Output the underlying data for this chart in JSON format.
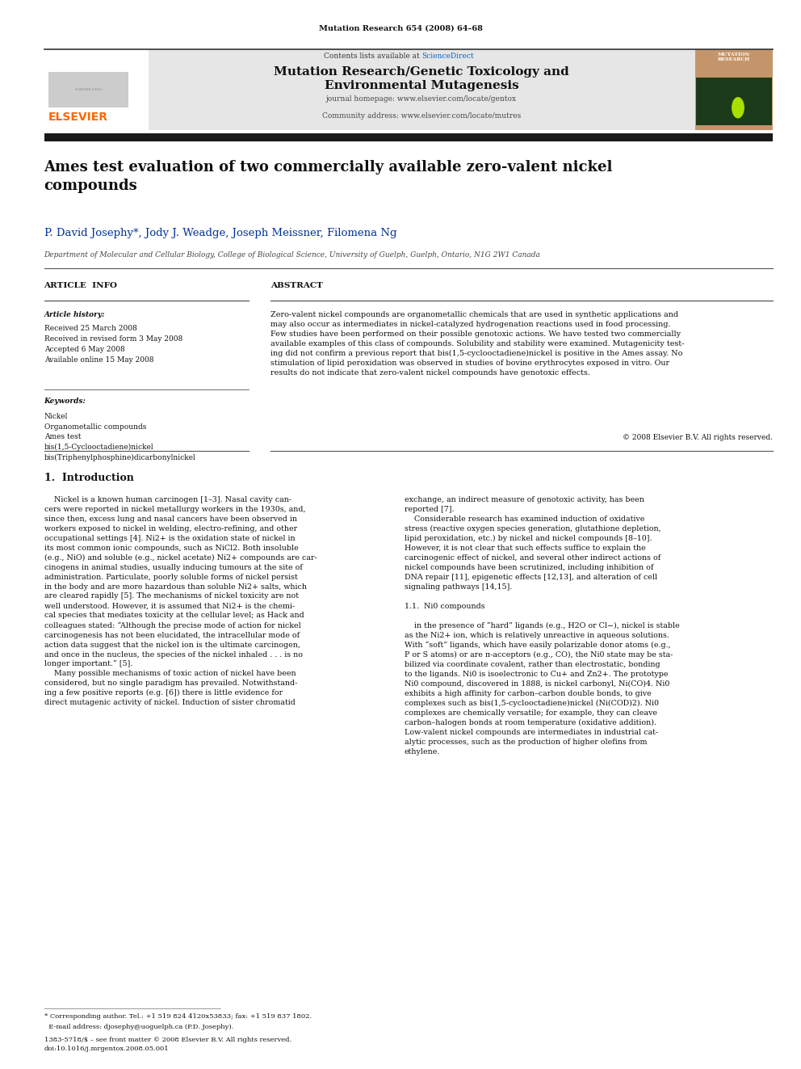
{
  "page_width": 9.92,
  "page_height": 13.23,
  "bg_color": "#ffffff",
  "journal_ref": "Mutation Research 654 (2008) 64–68",
  "header_content_line1": "Contents lists available at ScienceDirect",
  "header_journal_title": "Mutation Research/Genetic Toxicology and\nEnvironmental Mutagenesis",
  "header_journal_url1": "journal homepage: www.elsevier.com/locate/gentox",
  "header_journal_url2": "Community address: www.elsevier.com/locate/mutres",
  "sciencedirect_color": "#0066cc",
  "article_title": "Ames test evaluation of two commercially available zero-valent nickel\ncompounds",
  "authors": "P. David Josephy*, Jody J. Weadge, Joseph Meissner, Filomena Ng",
  "affiliation": "Department of Molecular and Cellular Biology, College of Biological Science, University of Guelph, Guelph, Ontario, N1G 2W1 Canada",
  "section_article_info": "ARTICLE  INFO",
  "section_abstract": "ABSTRACT",
  "article_history_label": "Article history:",
  "article_history": "Received 25 March 2008\nReceived in revised form 3 May 2008\nAccepted 6 May 2008\nAvailable online 15 May 2008",
  "keywords_label": "Keywords:",
  "keywords": "Nickel\nOrganometallic compounds\nAmes test\nbis(1,5-Cyclooctadiene)nickel\nbis(Triphenylphosphine)dicarbonylnickel",
  "abstract_text": "Zero-valent nickel compounds are organometallic chemicals that are used in synthetic applications and\nmay also occur as intermediates in nickel-catalyzed hydrogenation reactions used in food processing.\nFew studies have been performed on their possible genotoxic actions. We have tested two commercially\navailable examples of this class of compounds. Solubility and stability were examined. Mutagenicity test-\ning did not confirm a previous report that bis(1,5-cyclooctadiene)nickel is positive in the Ames assay. No\nstimulation of lipid peroxidation was observed in studies of bovine erythrocytes exposed in vitro. Our\nresults do not indicate that zero-valent nickel compounds have genotoxic effects.",
  "copyright": "© 2008 Elsevier B.V. All rights reserved.",
  "intro_heading": "1.  Introduction",
  "intro_col1_lines": [
    "    Nickel is a known human carcinogen [1–3]. Nasal cavity can-",
    "cers were reported in nickel metallurgy workers in the 1930s, and,",
    "since then, excess lung and nasal cancers have been observed in",
    "workers exposed to nickel in welding, electro-refining, and other",
    "occupational settings [4]. Ni2+ is the oxidation state of nickel in",
    "its most common ionic compounds, such as NiCl2. Both insoluble",
    "(e.g., NiO) and soluble (e.g., nickel acetate) Ni2+ compounds are car-",
    "cinogens in animal studies, usually inducing tumours at the site of",
    "administration. Particulate, poorly soluble forms of nickel persist",
    "in the body and are more hazardous than soluble Ni2+ salts, which",
    "are cleared rapidly [5]. The mechanisms of nickel toxicity are not",
    "well understood. However, it is assumed that Ni2+ is the chemi-",
    "cal species that mediates toxicity at the cellular level; as Hack and",
    "colleagues stated: “Although the precise mode of action for nickel",
    "carcinogenesis has not been elucidated, the intracellular mode of",
    "action data suggest that the nickel ion is the ultimate carcinogen,",
    "and once in the nucleus, the species of the nickel inhaled . . . is no",
    "longer important.” [5].",
    "    Many possible mechanisms of toxic action of nickel have been",
    "considered, but no single paradigm has prevailed. Notwithstand-",
    "ing a few positive reports (e.g. [6]) there is little evidence for",
    "direct mutagenic activity of nickel. Induction of sister chromatid"
  ],
  "intro_col2_lines": [
    "exchange, an indirect measure of genotoxic activity, has been",
    "reported [7].",
    "    Considerable research has examined induction of oxidative",
    "stress (reactive oxygen species generation, glutathione depletion,",
    "lipid peroxidation, etc.) by nickel and nickel compounds [8–10].",
    "However, it is not clear that such effects suffice to explain the",
    "carcinogenic effect of nickel, and several other indirect actions of",
    "nickel compounds have been scrutinized, including inhibition of",
    "DNA repair [11], epigenetic effects [12,13], and alteration of cell",
    "signaling pathways [14,15].",
    "",
    "1.1.  Ni0 compounds",
    "",
    "    in the presence of “hard” ligands (e.g., H2O or Cl−), nickel is stable",
    "as the Ni2+ ion, which is relatively unreactive in aqueous solutions.",
    "With “soft” ligands, which have easily polarizable donor atoms (e.g.,",
    "P or S atoms) or are π-acceptors (e.g., CO), the Ni0 state may be sta-",
    "bilized via coordinate covalent, rather than electrostatic, bonding",
    "to the ligands. Ni0 is isoelectronic to Cu+ and Zn2+. The prototype",
    "Ni0 compound, discovered in 1888, is nickel carbonyl, Ni(CO)4. Ni0",
    "exhibits a high affinity for carbon–carbon double bonds, to give",
    "complexes such as bis(1,5-cyclooctadiene)nickel (Ni(COD)2). Ni0",
    "complexes are chemically versatile; for example, they can cleave",
    "carbon–halogen bonds at room temperature (oxidative addition).",
    "Low-valent nickel compounds are intermediates in industrial cat-",
    "alytic processes, such as the production of higher olefins from",
    "ethylene."
  ],
  "footer_left": "1383-5718/$ – see front matter © 2008 Elsevier B.V. All rights reserved.\ndoi:10.1016/j.mrgentox.2008.05.001",
  "footnote_line1": "* Corresponding author. Tel.: +1 519 824 4120x53833; fax: +1 519 837 1802.",
  "footnote_line2": "  E-mail address: djosephy@uoguelph.ca (P.D. Josephy).",
  "authors_color": "#003399"
}
